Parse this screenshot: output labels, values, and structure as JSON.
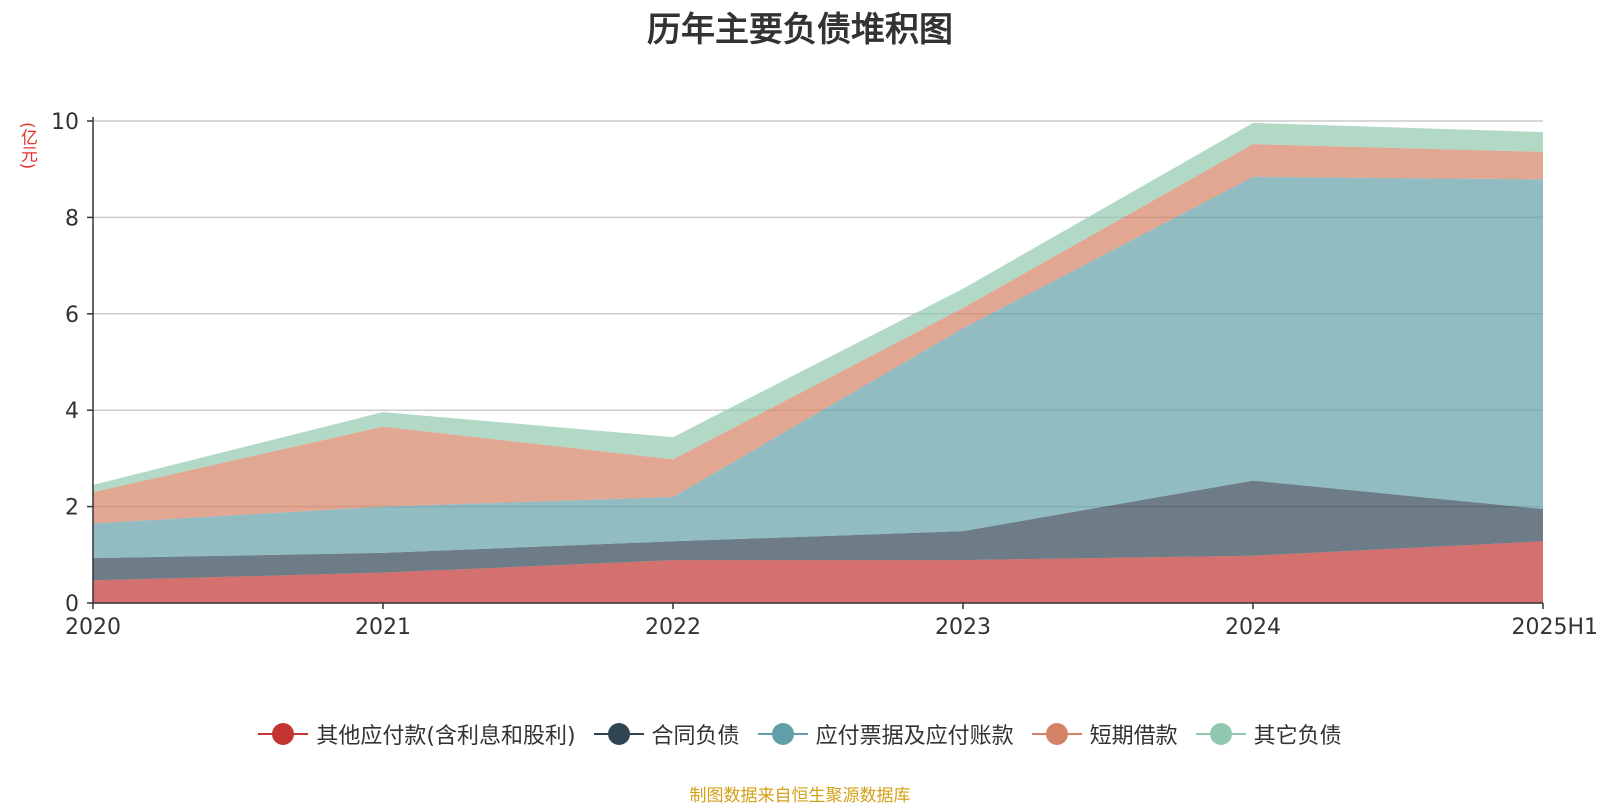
{
  "chart_data": {
    "type": "area",
    "stacked": true,
    "title": "历年主要负债堆积图",
    "ylabel": "(亿元)",
    "xlabel": "",
    "ylim": [
      0,
      10
    ],
    "yticks": [
      0,
      2,
      4,
      6,
      8,
      10
    ],
    "categories": [
      "2020",
      "2021",
      "2022",
      "2023",
      "2024",
      "2025H1"
    ],
    "series": [
      {
        "name": "其他应付款(含利息和股利)",
        "color": "#c23531",
        "values": [
          0.47,
          0.63,
          0.89,
          0.89,
          0.98,
          1.28
        ]
      },
      {
        "name": "合同负债",
        "color": "#2f4554",
        "values": [
          0.46,
          0.41,
          0.39,
          0.6,
          1.56,
          0.67
        ]
      },
      {
        "name": "应付票据及应付账款",
        "color": "#61a0a8",
        "values": [
          0.72,
          0.96,
          0.92,
          4.21,
          6.3,
          6.84
        ]
      },
      {
        "name": "短期借款",
        "color": "#d48265",
        "values": [
          0.65,
          1.66,
          0.78,
          0.42,
          0.68,
          0.57
        ]
      },
      {
        "name": "其它负债",
        "color": "#91c7ae",
        "values": [
          0.15,
          0.3,
          0.46,
          0.4,
          0.44,
          0.41
        ]
      }
    ],
    "grid": true,
    "legend_position": "bottom"
  },
  "source_note": "制图数据来自恒生聚源数据库"
}
